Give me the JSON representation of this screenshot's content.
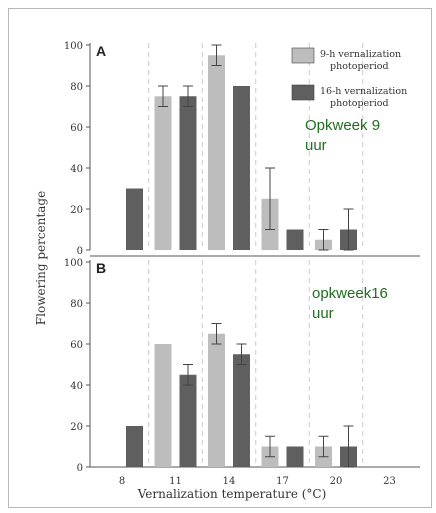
{
  "chart_data": [
    {
      "type": "bar",
      "panel_label": "A",
      "categories": [
        "8",
        "11",
        "14",
        "17",
        "20",
        "23"
      ],
      "series": [
        {
          "name": "9-h vernalization photoperiod",
          "color": "#bdbdbd",
          "values": [
            null,
            75,
            95,
            25,
            5,
            null
          ],
          "errors": [
            null,
            5,
            5,
            15,
            5,
            null
          ]
        },
        {
          "name": "16-h vernalization photoperiod",
          "color": "#5f5f5f",
          "values": [
            30,
            75,
            80,
            10,
            10,
            null
          ],
          "errors": [
            null,
            5,
            null,
            null,
            10,
            null
          ]
        }
      ],
      "ylim": [
        0,
        100
      ],
      "yticks": [
        "0",
        "20",
        "40",
        "60",
        "80",
        "100"
      ],
      "legend": {
        "placement": "top-right",
        "entries": [
          {
            "line1": "9-h vernalization",
            "line2": "photoperiod",
            "color": "#bdbdbd"
          },
          {
            "line1": "16-h vernalization",
            "line2": "photoperiod",
            "color": "#5f5f5f"
          }
        ]
      },
      "annotation": {
        "line1": "Opkweek 9",
        "line2": "uur",
        "color": "#1f6e1f"
      }
    },
    {
      "type": "bar",
      "panel_label": "B",
      "categories": [
        "8",
        "11",
        "14",
        "17",
        "20",
        "23"
      ],
      "series": [
        {
          "name": "9-h vernalization photoperiod",
          "color": "#bdbdbd",
          "values": [
            null,
            60,
            65,
            10,
            10,
            null
          ],
          "errors": [
            null,
            null,
            5,
            5,
            5,
            null
          ]
        },
        {
          "name": "16-h vernalization photoperiod",
          "color": "#5f5f5f",
          "values": [
            20,
            45,
            55,
            10,
            10,
            null
          ],
          "errors": [
            null,
            5,
            5,
            null,
            10,
            null
          ]
        }
      ],
      "ylim": [
        0,
        100
      ],
      "yticks": [
        "0",
        "20",
        "40",
        "60",
        "80",
        "100"
      ],
      "annotation": {
        "line1": "opkweek16",
        "line2": "uur",
        "color": "#1f6e1f"
      }
    }
  ],
  "axes": {
    "ylabel": "Flowering percentage",
    "xlabel": "Vernalization temperature (°C)",
    "xticks": [
      "8",
      "11",
      "14",
      "17",
      "20",
      "23"
    ]
  }
}
